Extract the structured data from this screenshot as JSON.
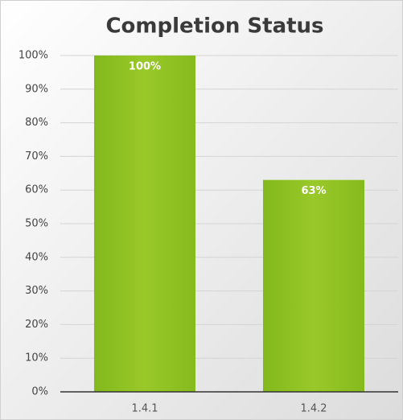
{
  "chart_data": {
    "type": "bar",
    "title": "Completion Status",
    "categories": [
      "1.4.1",
      "1.4.2"
    ],
    "values": [
      100,
      63
    ],
    "value_labels": [
      "100%",
      "63%"
    ],
    "color": "#8dc021",
    "ylim": [
      0,
      100
    ],
    "yticks": [
      {
        "value": 0,
        "label": "0%"
      },
      {
        "value": 10,
        "label": "10%"
      },
      {
        "value": 20,
        "label": "20%"
      },
      {
        "value": 30,
        "label": "30%"
      },
      {
        "value": 40,
        "label": "40%"
      },
      {
        "value": 50,
        "label": "50%"
      },
      {
        "value": 60,
        "label": "60%"
      },
      {
        "value": 70,
        "label": "70%"
      },
      {
        "value": 80,
        "label": "80%"
      },
      {
        "value": 90,
        "label": "90%"
      },
      {
        "value": 100,
        "label": "100%"
      }
    ],
    "grid": true
  }
}
